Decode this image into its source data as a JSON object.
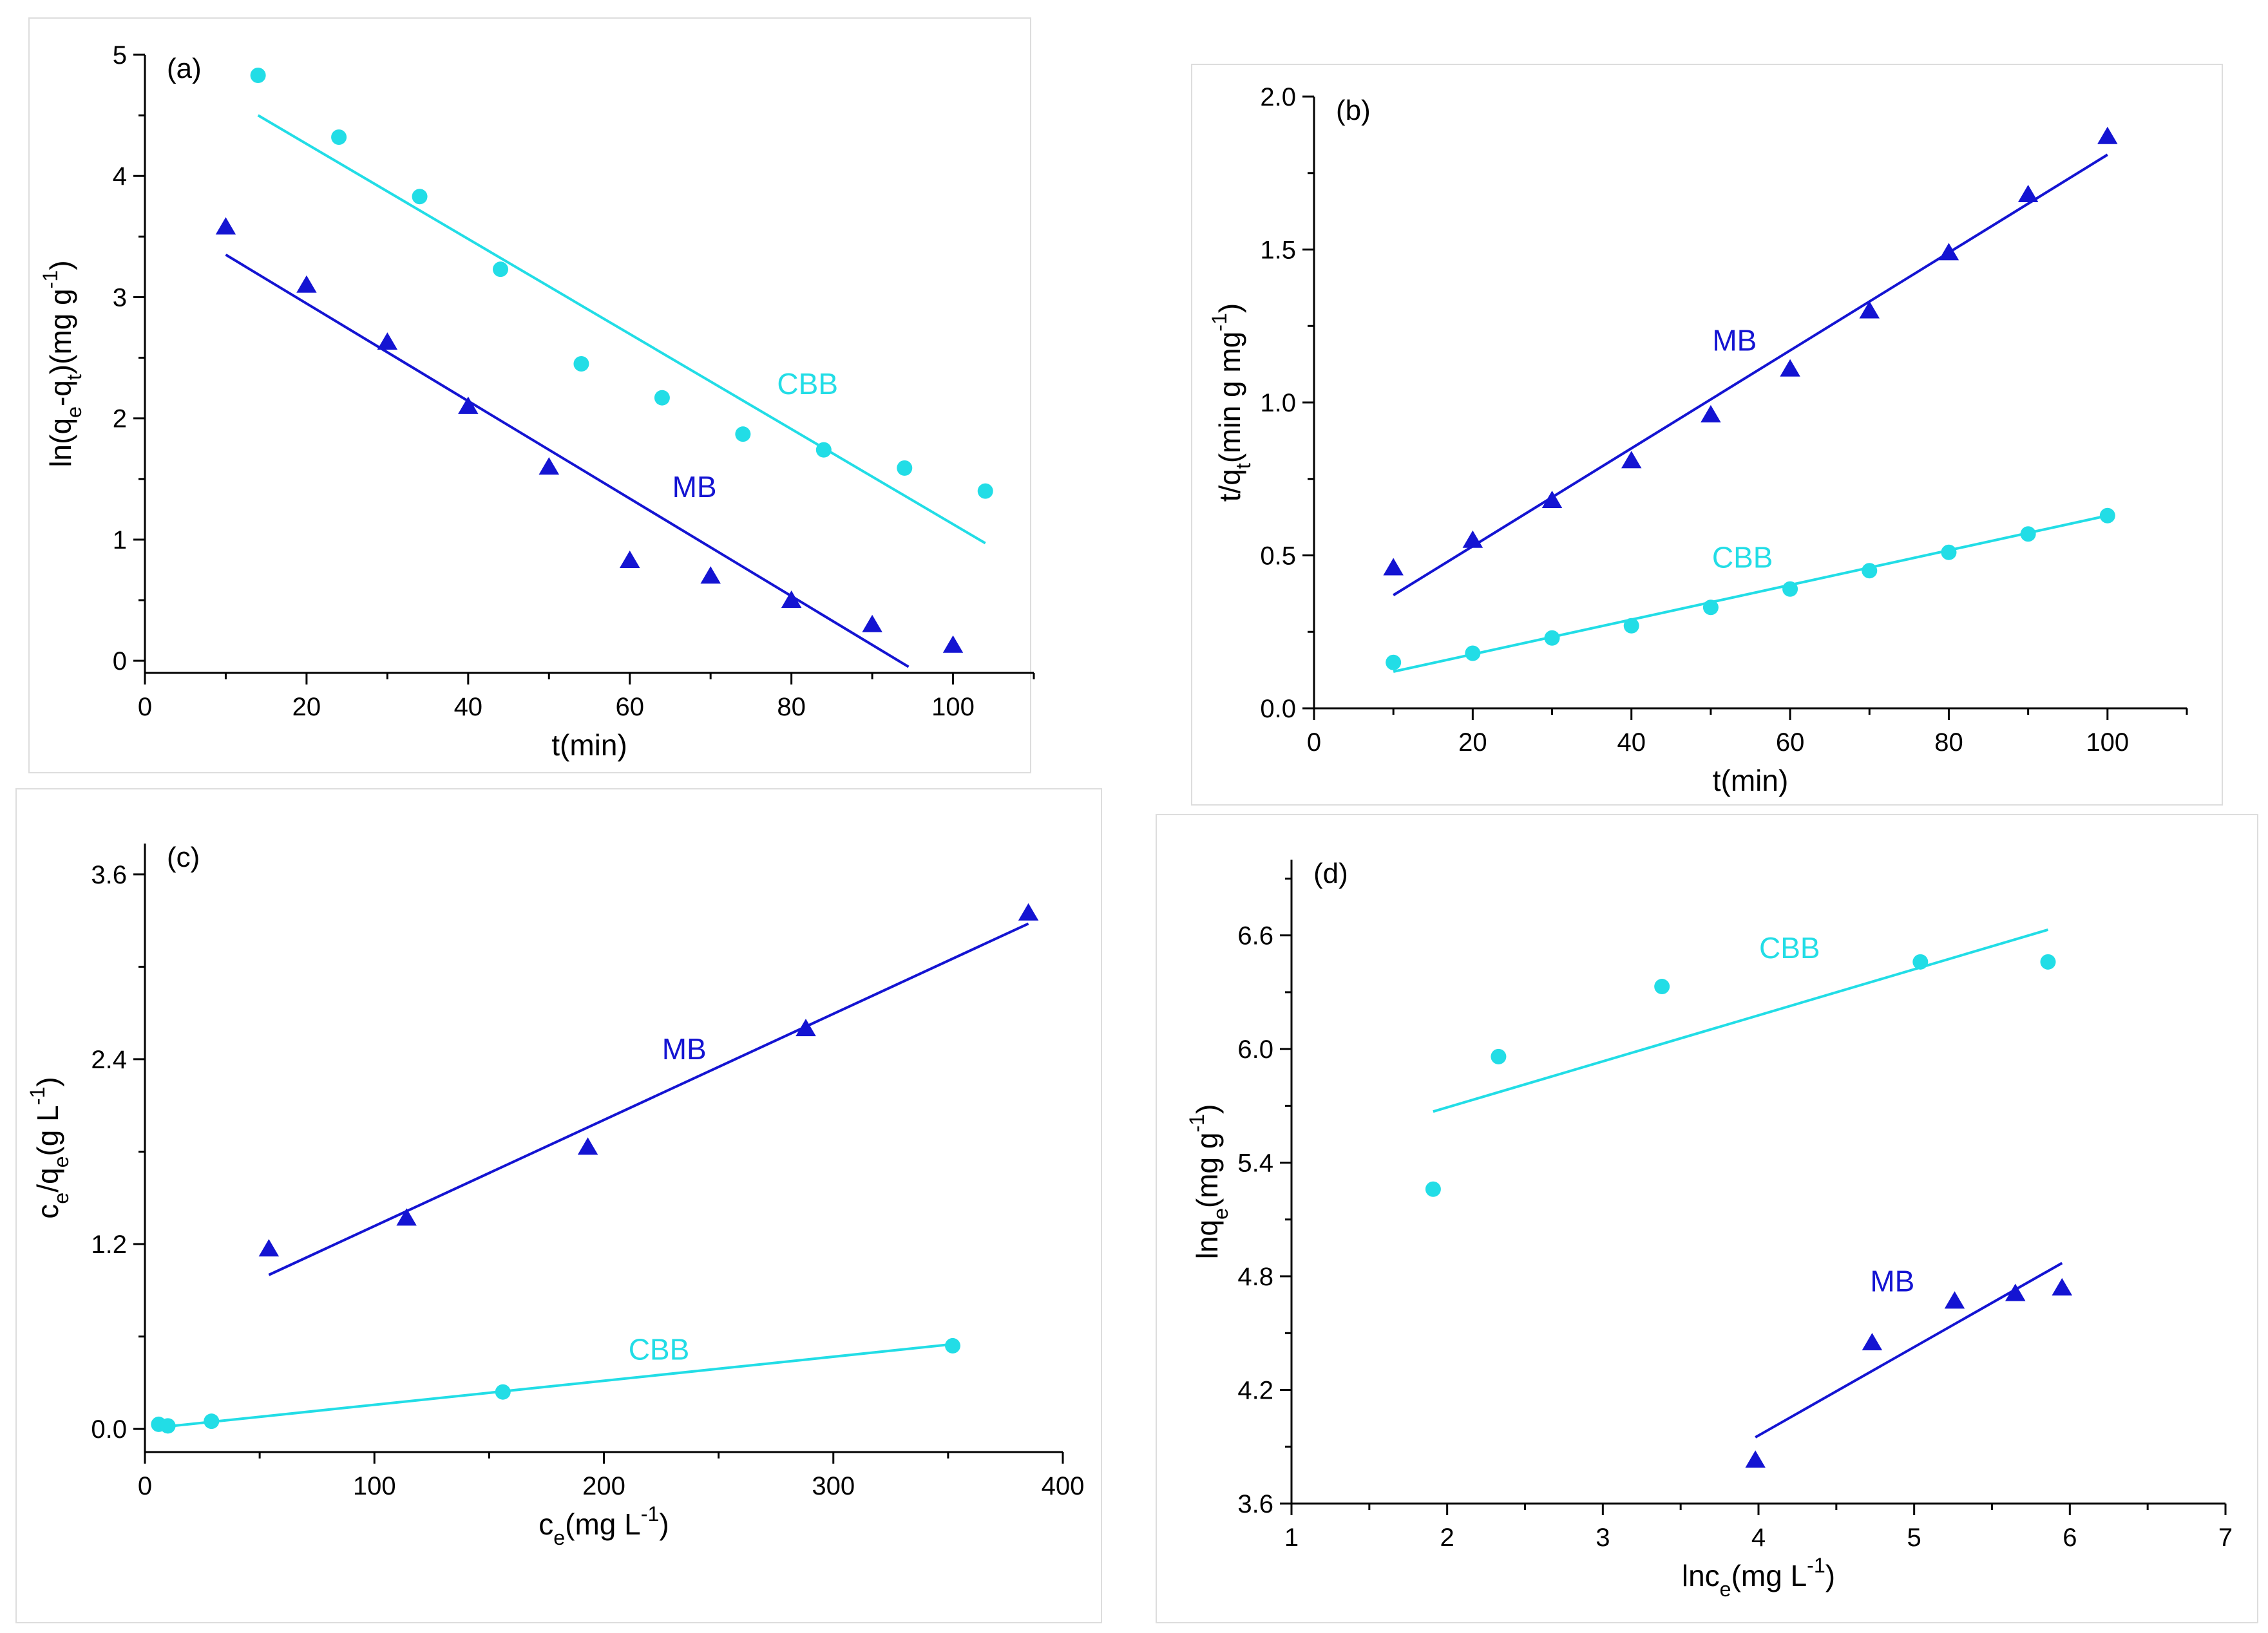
{
  "colors": {
    "MB": "#1414d2",
    "CBB": "#22dde6",
    "axis": "#000000"
  },
  "chart_data": [
    {
      "type": "scatter",
      "panel_label": "(a)",
      "xlabel": "t(min)",
      "ylabel": "ln(q_e-q_t)(mg g^-1)",
      "xlim": [
        0,
        110
      ],
      "ylim": [
        -0.1,
        5
      ],
      "xticks": [
        0,
        20,
        40,
        60,
        80,
        100
      ],
      "yticks": [
        0,
        1,
        2,
        3,
        4,
        5
      ],
      "grid": false,
      "series": [
        {
          "name": "MB",
          "marker": "triangle",
          "x": [
            10,
            20,
            30,
            40,
            50,
            60,
            70,
            80,
            90,
            100
          ],
          "y": [
            3.58,
            3.1,
            2.63,
            2.1,
            1.6,
            0.83,
            0.7,
            0.5,
            0.3,
            0.13
          ],
          "fit": [
            [
              10,
              3.35
            ],
            [
              94.5,
              -0.05
            ]
          ],
          "label_at": [
            68,
            1.35
          ]
        },
        {
          "name": "CBB",
          "marker": "circle",
          "x": [
            14,
            24,
            34,
            44,
            54,
            64,
            74,
            84,
            94,
            104
          ],
          "y": [
            4.83,
            4.32,
            3.83,
            3.23,
            2.45,
            2.17,
            1.87,
            1.74,
            1.59,
            1.4
          ],
          "fit": [
            [
              14,
              4.5
            ],
            [
              104,
              0.97
            ]
          ],
          "label_at": [
            82,
            2.2
          ]
        }
      ]
    },
    {
      "type": "scatter",
      "panel_label": "(b)",
      "xlabel": "t(min)",
      "ylabel": "t/q_t(min g mg^-1)",
      "xlim": [
        0,
        110
      ],
      "ylim": [
        0,
        2.0
      ],
      "xticks": [
        0,
        20,
        40,
        60,
        80,
        100
      ],
      "yticks": [
        "0.0",
        "0.5",
        "1.0",
        "1.5",
        "2.0"
      ],
      "grid": false,
      "series": [
        {
          "name": "MB",
          "marker": "triangle",
          "x": [
            10,
            20,
            30,
            40,
            50,
            60,
            70,
            80,
            90,
            100
          ],
          "y": [
            0.46,
            0.55,
            0.68,
            0.81,
            0.96,
            1.11,
            1.3,
            1.49,
            1.68,
            1.87
          ],
          "fit": [
            [
              10,
              0.37
            ],
            [
              100,
              1.81
            ]
          ],
          "label_at": [
            53,
            1.17
          ]
        },
        {
          "name": "CBB",
          "marker": "circle",
          "x": [
            10,
            20,
            30,
            40,
            50,
            60,
            70,
            80,
            90,
            100
          ],
          "y": [
            0.15,
            0.18,
            0.23,
            0.27,
            0.33,
            0.39,
            0.45,
            0.51,
            0.57,
            0.63
          ],
          "fit": [
            [
              10,
              0.12
            ],
            [
              100,
              0.63
            ]
          ],
          "label_at": [
            54,
            0.46
          ]
        }
      ]
    },
    {
      "type": "scatter",
      "panel_label": "(c)",
      "xlabel": "c_e(mg L^-1)",
      "ylabel": "c_e/q_e(g L^-1)",
      "xlim": [
        0,
        400
      ],
      "ylim": [
        -0.15,
        3.8
      ],
      "xticks": [
        0,
        100,
        200,
        300,
        400
      ],
      "yticks": [
        "0.0",
        "1.2",
        "2.4",
        "3.6"
      ],
      "grid": false,
      "series": [
        {
          "name": "MB",
          "marker": "triangle",
          "x": [
            54,
            114,
            193,
            288,
            385
          ],
          "y": [
            1.17,
            1.37,
            1.83,
            2.6,
            3.35
          ],
          "fit": [
            [
              54,
              1.0
            ],
            [
              385,
              3.28
            ]
          ],
          "label_at": [
            235,
            2.4
          ]
        },
        {
          "name": "CBB",
          "marker": "circle",
          "x": [
            6,
            10,
            29,
            156,
            352
          ],
          "y": [
            0.03,
            0.02,
            0.05,
            0.24,
            0.54
          ],
          "fit": [
            [
              6,
              0.01
            ],
            [
              352,
              0.55
            ]
          ],
          "label_at": [
            224,
            0.45
          ]
        }
      ]
    },
    {
      "type": "scatter",
      "panel_label": "(d)",
      "xlabel": "lnc_e(mg L^-1)",
      "ylabel": "lnq_e(mg g^-1)",
      "xlim": [
        1,
        7
      ],
      "ylim": [
        3.6,
        7.0
      ],
      "xticks": [
        1,
        2,
        3,
        4,
        5,
        6,
        7
      ],
      "yticks": [
        "3.6",
        "4.2",
        "4.8",
        "5.4",
        "6.0",
        "6.6"
      ],
      "grid": false,
      "series": [
        {
          "name": "MB",
          "marker": "triangle",
          "x": [
            3.98,
            4.73,
            5.26,
            5.65,
            5.95
          ],
          "y": [
            3.83,
            4.45,
            4.67,
            4.71,
            4.74
          ],
          "fit": [
            [
              3.98,
              3.95
            ],
            [
              5.95,
              4.87
            ]
          ],
          "label_at": [
            4.86,
            4.72
          ]
        },
        {
          "name": "CBB",
          "marker": "circle",
          "x": [
            1.91,
            2.33,
            3.38,
            5.04,
            5.86
          ],
          "y": [
            5.26,
            5.96,
            6.33,
            6.46,
            6.46
          ],
          "fit": [
            [
              1.91,
              5.67
            ],
            [
              5.86,
              6.63
            ]
          ],
          "label_at": [
            4.2,
            6.48
          ]
        }
      ]
    }
  ]
}
